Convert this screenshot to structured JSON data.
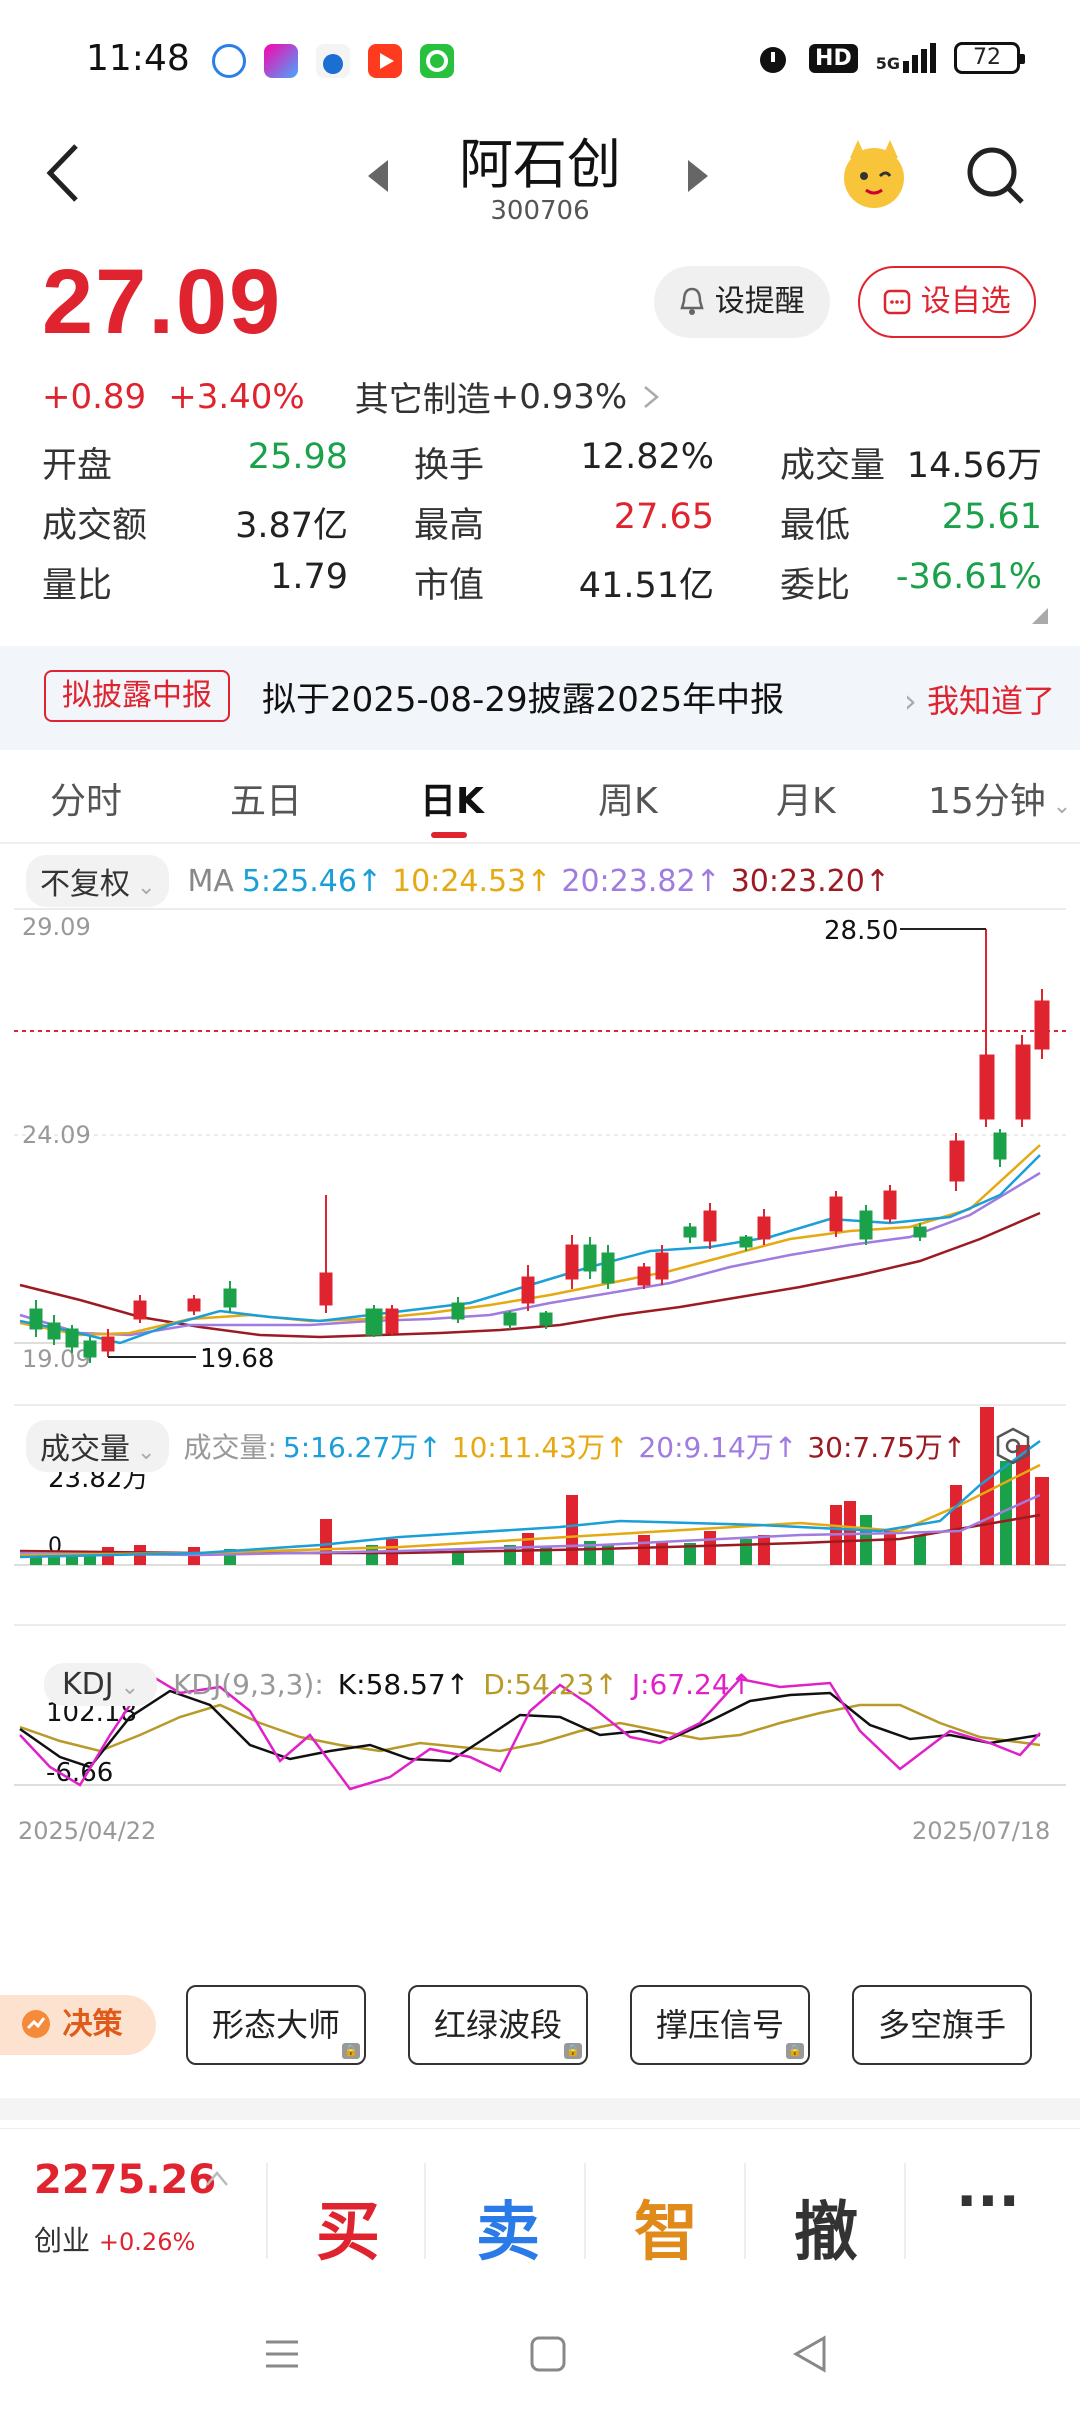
{
  "status": {
    "time": "11:48",
    "network": "5G",
    "hd": "HD",
    "battery": "72"
  },
  "header": {
    "title": "阿石创",
    "code": "300706"
  },
  "quote": {
    "price": "27.09",
    "change": "+0.89",
    "change_pct": "+3.40%",
    "sector": "其它制造",
    "sector_change": "+0.93%",
    "alert_label": "设提醒",
    "watch_label": "设自选"
  },
  "stats": [
    [
      {
        "label": "开盘",
        "value": "25.98",
        "color": "green"
      },
      {
        "label": "换手",
        "value": "12.82%",
        "color": "black"
      },
      {
        "label": "成交量",
        "value": "14.56万",
        "color": "black"
      }
    ],
    [
      {
        "label": "成交额",
        "value": "3.87亿",
        "color": "black"
      },
      {
        "label": "最高",
        "value": "27.65",
        "color": "red"
      },
      {
        "label": "最低",
        "value": "25.61",
        "color": "green"
      }
    ],
    [
      {
        "label": "量比",
        "value": "1.79",
        "color": "black"
      },
      {
        "label": "市值",
        "value": "41.51亿",
        "color": "black"
      },
      {
        "label": "委比",
        "value": "-36.61%",
        "color": "green"
      }
    ]
  ],
  "notice": {
    "tag": "拟披露中报",
    "text": "拟于2025-08-29披露2025年中报",
    "action": "我知道了"
  },
  "tabs": [
    "分时",
    "五日",
    "日K",
    "周K",
    "月K",
    "15分钟"
  ],
  "active_tab": "日K",
  "chart": {
    "adjust": "不复权",
    "ma_label": "MA",
    "ma": [
      {
        "label": "5:25.46",
        "color": "#1a9fd8"
      },
      {
        "label": "10:24.53",
        "color": "#e5a912"
      },
      {
        "label": "20:23.82",
        "color": "#a07be0"
      },
      {
        "label": "30:23.20",
        "color": "#9c1a22"
      }
    ],
    "y_top": "29.09",
    "y_mid": "24.09",
    "y_bottom": "19.09",
    "high_mark": "28.50",
    "low_mark": "19.68",
    "volume_label": "成交量",
    "volume_prefix": "成交量:",
    "vol_ma": [
      {
        "label": "5:16.27万",
        "color": "#1a9fd8"
      },
      {
        "label": "10:11.43万",
        "color": "#e5a912"
      },
      {
        "label": "20:9.14万",
        "color": "#a07be0"
      },
      {
        "label": "30:7.75万",
        "color": "#9c1a22"
      }
    ],
    "vol_top": "23.82万",
    "vol_zero": "0",
    "kdj_label": "KDJ",
    "kdj_params": "KDJ(9,3,3):",
    "kdj": [
      {
        "label": "K:58.57",
        "color": "#111111"
      },
      {
        "label": "D:54.23",
        "color": "#b89a2a"
      },
      {
        "label": "J:67.24",
        "color": "#e020c8"
      }
    ],
    "kdj_top": "102.18",
    "kdj_bottom": "-6.66",
    "date_start": "2025/04/22",
    "date_end": "2025/07/18"
  },
  "decision": {
    "label": "决策",
    "buttons": [
      "形态大师",
      "红绿波段",
      "撑压信号",
      "多空旗手"
    ]
  },
  "bottom": {
    "index_value": "2275.26",
    "index_name": "创业",
    "index_change": "+0.26%",
    "buy": "买",
    "sell": "卖",
    "smart": "智",
    "cancel": "撤",
    "more": "···"
  },
  "colors": {
    "up": "#e0242f",
    "down": "#1aa14a"
  }
}
